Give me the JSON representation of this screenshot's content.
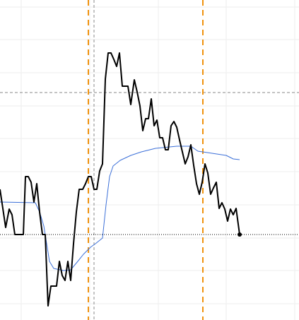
{
  "chart_data": {
    "type": "line",
    "xlim": [
      0,
      423
    ],
    "ylim": [
      0,
      453
    ],
    "xticks": [
      30,
      127,
      224,
      320,
      417
    ],
    "yticks": [
      23,
      70,
      116,
      163,
      210,
      257,
      303,
      350,
      397,
      443
    ],
    "grid": true,
    "series": [
      {
        "color": "#000000",
        "x": [
          0,
          8,
          13,
          17,
          21,
          33,
          36,
          40,
          44,
          48,
          52,
          56,
          60,
          64,
          68,
          72,
          80,
          84,
          88,
          92,
          96,
          100,
          104,
          108,
          112,
          117,
          121,
          125,
          129,
          133,
          137,
          141,
          145,
          149,
          153,
          157,
          161,
          165,
          169,
          173,
          181,
          185,
          190,
          194,
          198,
          202,
          206,
          210,
          214,
          218,
          222,
          226,
          230,
          234,
          238,
          242,
          246,
          250,
          254,
          258,
          262,
          266,
          270,
          274,
          278,
          282,
          286,
          290,
          294,
          298,
          302,
          306,
          310,
          314,
          318,
          322,
          326,
          330,
          334,
          339
        ],
        "values": [
          185,
          131,
          157,
          149,
          121,
          121,
          203,
          203,
          195,
          167,
          193,
          153,
          121,
          121,
          20,
          48,
          48,
          83,
          63,
          56,
          83,
          56,
          108,
          153,
          185,
          185,
          193,
          203,
          203,
          185,
          185,
          211,
          221,
          341,
          378,
          378,
          369,
          359,
          378,
          331,
          331,
          305,
          340,
          323,
          303,
          268,
          285,
          285,
          313,
          275,
          283,
          258,
          258,
          241,
          241,
          275,
          281,
          273,
          255,
          238,
          221,
          231,
          248,
          219,
          193,
          178,
          195,
          221,
          208,
          178,
          187,
          195,
          158,
          166,
          157,
          140,
          157,
          149,
          158,
          121
        ]
      },
      {
        "color": "#3b6fd8",
        "x": [
          0,
          50,
          56,
          62,
          66,
          70,
          76,
          90,
          100,
          110,
          118,
          128,
          135,
          145,
          150,
          155,
          160,
          170,
          185,
          200,
          220,
          250,
          270,
          280,
          300,
          320,
          330,
          339
        ],
        "values": [
          167,
          166,
          153,
          133,
          108,
          83,
          73,
          70,
          71,
          83,
          93,
          103,
          108,
          116,
          163,
          203,
          218,
          226,
          233,
          238,
          243,
          246,
          246,
          239,
          236,
          233,
          228,
          227
        ]
      }
    ],
    "vertical_markers": [
      125,
      287
    ],
    "crosshair": {
      "x": 133,
      "y": 322
    },
    "reference_line": 121
  }
}
